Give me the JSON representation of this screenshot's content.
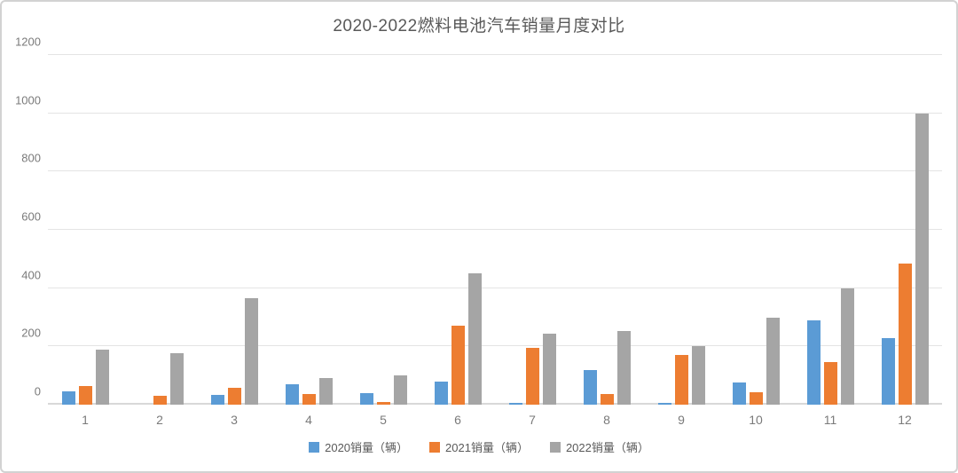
{
  "chart_data": {
    "type": "bar",
    "title": "2020-2022燃料电池汽车销量月度对比",
    "categories": [
      "1",
      "2",
      "3",
      "4",
      "5",
      "6",
      "7",
      "8",
      "9",
      "10",
      "11",
      "12"
    ],
    "series": [
      {
        "name": "2020销量（辆）",
        "color": "#5B9BD5",
        "values": [
          45,
          0,
          35,
          70,
          41,
          79,
          5,
          120,
          5,
          76,
          290,
          227
        ]
      },
      {
        "name": "2021销量（辆）",
        "color": "#ED7D31",
        "values": [
          63,
          30,
          58,
          36,
          10,
          270,
          194,
          36,
          172,
          44,
          145,
          483
        ]
      },
      {
        "name": "2022销量（辆）",
        "color": "#A5A5A5",
        "values": [
          190,
          178,
          365,
          92,
          102,
          452,
          244,
          253,
          200,
          300,
          400,
          1000
        ]
      }
    ],
    "xlabel": "",
    "ylabel": "",
    "ylim": [
      0,
      1200
    ],
    "yticks": [
      0,
      200,
      400,
      600,
      800,
      1000,
      1200
    ],
    "grid": true,
    "legend_position": "bottom"
  },
  "colors": {
    "title_text": "#595959",
    "axis_text": "#7a7a7a",
    "gridline": "#e4e4e4",
    "axis_line": "#d8d8d8",
    "card_border": "#d2d2d2",
    "background": "#ffffff"
  }
}
